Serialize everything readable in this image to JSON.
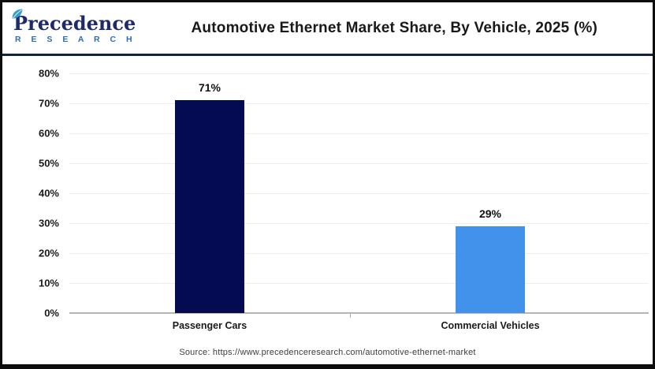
{
  "header": {
    "logo": {
      "brand": "Precedence",
      "subtitle": "R E S E A R C H"
    },
    "title": "Automotive Ethernet Market Share, By Vehicle, 2025 (%)"
  },
  "chart_data": {
    "type": "bar",
    "title": "Automotive Ethernet Market Share, By Vehicle, 2025 (%)",
    "categories": [
      "Passenger Cars",
      "Commercial Vehicles"
    ],
    "values": [
      71,
      29
    ],
    "value_labels": [
      "71%",
      "29%"
    ],
    "bar_colors": [
      "#040b52",
      "#4292ec"
    ],
    "xlabel": "",
    "ylabel": "",
    "ylim": [
      0,
      80
    ],
    "ytick_labels": [
      "0%",
      "10%",
      "20%",
      "30%",
      "40%",
      "50%",
      "60%",
      "70%",
      "80%"
    ],
    "grid": true,
    "legend": false
  },
  "footer": {
    "source": "Source: https://www.precedenceresearch.com/automotive-ethernet-market"
  },
  "colors": {
    "bar_navy": "#040b52",
    "bar_blue": "#4292ec",
    "divider_navy": "#16213d",
    "gridline": "#ededed",
    "axis_line": "#b5b5b5",
    "logo_navy": "#1e2a6b",
    "logo_blue": "#2f6cb4",
    "leaf_teal": "#2f9fd0"
  }
}
